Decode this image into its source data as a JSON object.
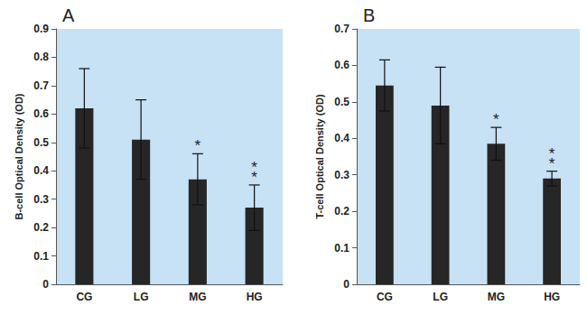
{
  "chart_data": [
    {
      "type": "bar",
      "title": "A",
      "y_label": "B-cell Optical Density (OD)",
      "categories": [
        "CG",
        "LG",
        "MG",
        "HG"
      ],
      "values": [
        0.62,
        0.51,
        0.37,
        0.27
      ],
      "errors": [
        0.14,
        0.14,
        0.09,
        0.08
      ],
      "annotations": [
        {
          "category": "MG",
          "text": "*"
        },
        {
          "category": "HG",
          "text": "**"
        }
      ],
      "color": "#262626",
      "ylim": [
        0,
        0.9
      ],
      "yticks": [
        0,
        0.1,
        0.2,
        0.3,
        0.4,
        0.5,
        0.6,
        0.7,
        0.8,
        0.9
      ],
      "grid": false
    },
    {
      "type": "bar",
      "title": "B",
      "y_label": "T-cell Optical Density (OD)",
      "categories": [
        "CG",
        "LG",
        "MG",
        "HG"
      ],
      "values": [
        0.545,
        0.49,
        0.385,
        0.29
      ],
      "errors": [
        0.07,
        0.105,
        0.045,
        0.02
      ],
      "annotations": [
        {
          "category": "MG",
          "text": "*"
        },
        {
          "category": "HG",
          "text": "**"
        }
      ],
      "color": "#262626",
      "ylim": [
        0,
        0.7
      ],
      "yticks": [
        0,
        0.1,
        0.2,
        0.3,
        0.4,
        0.5,
        0.6,
        0.7
      ],
      "grid": false
    }
  ]
}
